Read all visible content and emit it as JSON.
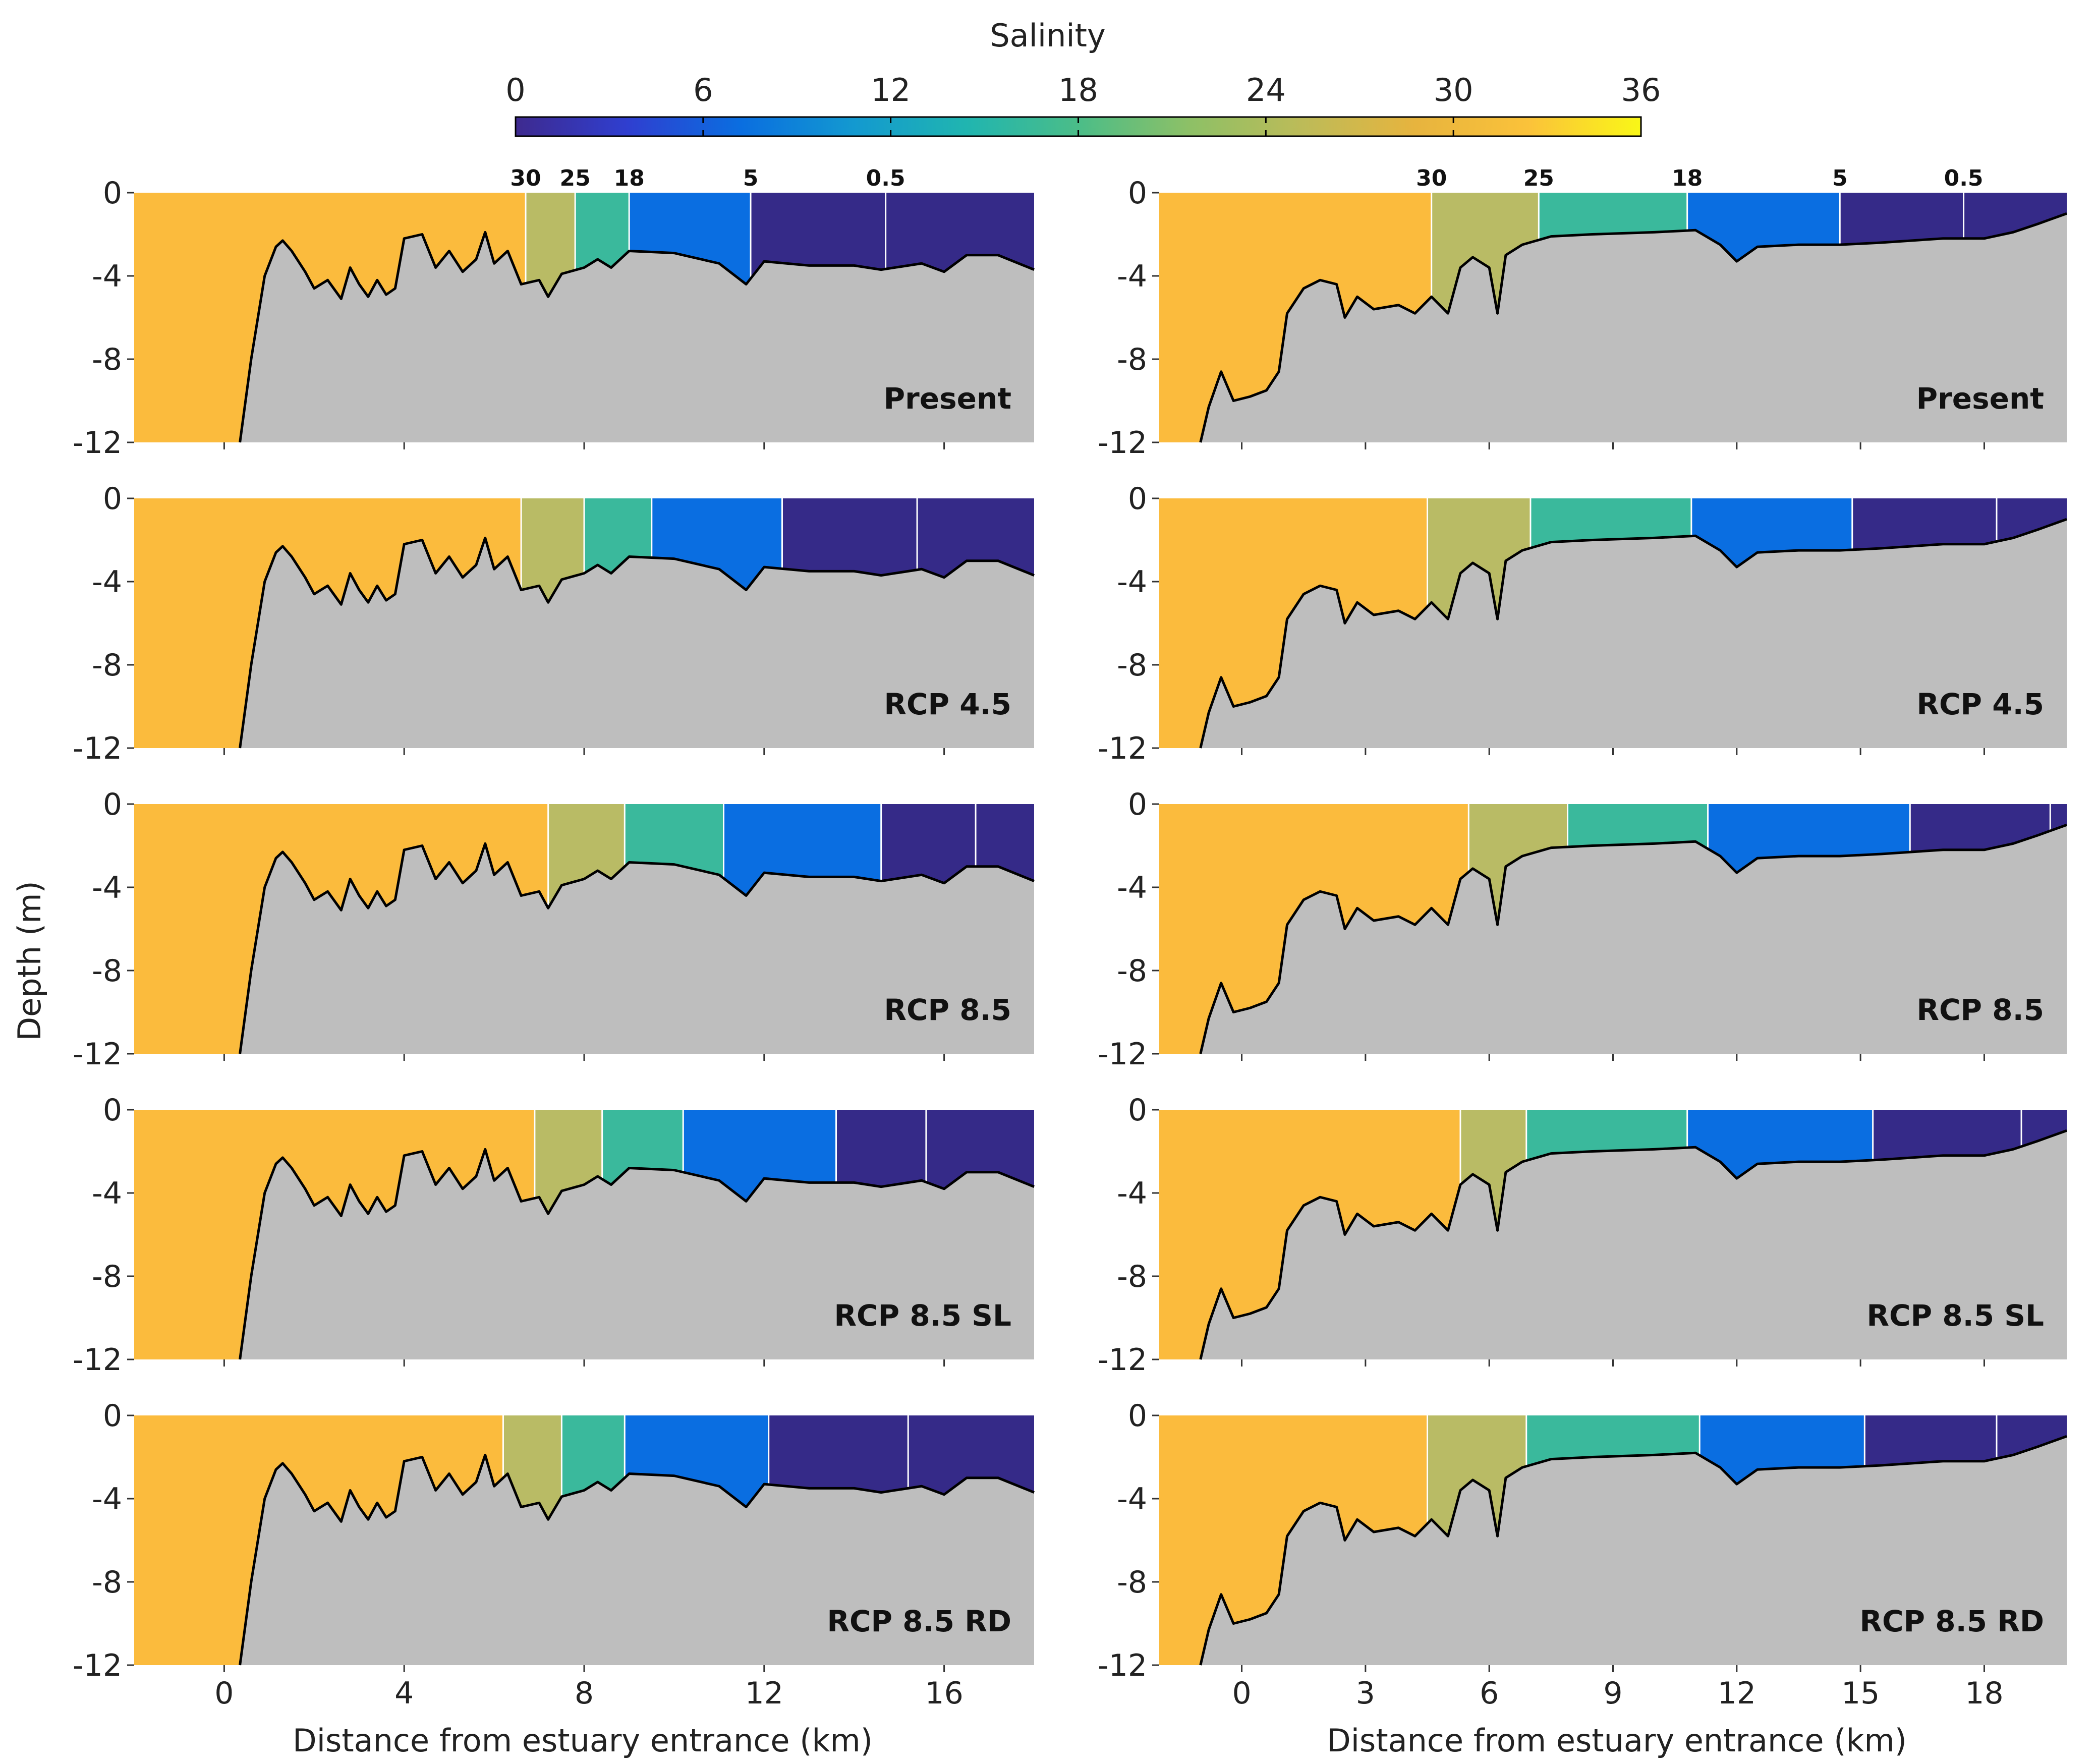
{
  "chart_data": {
    "type": "area",
    "title": "Salinity",
    "colorbar": {
      "label": "Salinity",
      "ticks": [
        "0",
        "6",
        "12",
        "18",
        "24",
        "30",
        "36"
      ],
      "range": [
        0,
        36
      ],
      "colormap": [
        "#3e2a8f",
        "#2f3fd0",
        "#0a6ee0",
        "#1399d0",
        "#20b5b0",
        "#4bbd88",
        "#8ec066",
        "#bdbb58",
        "#e7b43e",
        "#fbc23a",
        "#f9f717"
      ]
    },
    "band_colors": {
      "above30": "#fbbb3d",
      "25to30": "#b9bb65",
      "18to25": "#3ab99c",
      "5to18": "#0a6ee1",
      "0.5to5": "#352a88",
      "below0.5": "#352a88",
      "bed": "#bebebe",
      "isohaline": "#ffffff",
      "bottom_line": "#000000"
    },
    "ylabel": "Depth (m)",
    "xlabel": "Distance from estuary entrance (km)",
    "ylim": [
      -12,
      0
    ],
    "y_ticks": [
      "0",
      "-4",
      "-8",
      "-12"
    ],
    "scenarios": [
      "Present",
      "RCP 4.5",
      "RCP 8.5",
      "RCP 8.5 SL",
      "RCP 8.5 RD"
    ],
    "left_column": {
      "xlim": [
        -2,
        18
      ],
      "x_ticks": [
        "0",
        "4",
        "8",
        "12",
        "16"
      ],
      "x_tick_values": [
        0,
        4,
        8,
        12,
        16
      ],
      "isohaline_labels": [
        "30",
        "25",
        "18",
        "5",
        "0.5"
      ],
      "bottom_profile": [
        [
          0.35,
          -12
        ],
        [
          0.6,
          -8
        ],
        [
          0.9,
          -4
        ],
        [
          1.15,
          -2.6
        ],
        [
          1.3,
          -2.3
        ],
        [
          1.5,
          -2.8
        ],
        [
          1.8,
          -3.8
        ],
        [
          2.0,
          -4.6
        ],
        [
          2.3,
          -4.2
        ],
        [
          2.6,
          -5.1
        ],
        [
          2.8,
          -3.6
        ],
        [
          3.0,
          -4.4
        ],
        [
          3.2,
          -5.0
        ],
        [
          3.4,
          -4.2
        ],
        [
          3.6,
          -4.9
        ],
        [
          3.8,
          -4.6
        ],
        [
          4.0,
          -2.2
        ],
        [
          4.4,
          -2.0
        ],
        [
          4.7,
          -3.6
        ],
        [
          5.0,
          -2.8
        ],
        [
          5.3,
          -3.8
        ],
        [
          5.6,
          -3.2
        ],
        [
          5.8,
          -1.9
        ],
        [
          6.0,
          -3.4
        ],
        [
          6.3,
          -2.8
        ],
        [
          6.6,
          -4.4
        ],
        [
          7.0,
          -4.2
        ],
        [
          7.2,
          -5.0
        ],
        [
          7.5,
          -3.9
        ],
        [
          8.0,
          -3.6
        ],
        [
          8.3,
          -3.2
        ],
        [
          8.6,
          -3.6
        ],
        [
          9.0,
          -2.8
        ],
        [
          10.0,
          -2.9
        ],
        [
          11.0,
          -3.4
        ],
        [
          11.6,
          -4.4
        ],
        [
          12.0,
          -3.3
        ],
        [
          13.0,
          -3.5
        ],
        [
          14.0,
          -3.5
        ],
        [
          14.6,
          -3.7
        ],
        [
          15.5,
          -3.4
        ],
        [
          16.0,
          -3.8
        ],
        [
          16.5,
          -3.0
        ],
        [
          17.2,
          -3.0
        ],
        [
          18,
          -3.7
        ]
      ],
      "isohalines": {
        "Present": [
          6.7,
          7.8,
          9.0,
          11.7,
          14.7
        ],
        "RCP 4.5": [
          6.6,
          8.0,
          9.5,
          12.4,
          15.4
        ],
        "RCP 8.5": [
          7.2,
          8.9,
          11.1,
          14.6,
          16.7
        ],
        "RCP 8.5 SL": [
          6.9,
          8.4,
          10.2,
          13.6,
          15.6
        ],
        "RCP 8.5 RD": [
          6.2,
          7.5,
          8.9,
          12.1,
          15.2
        ]
      }
    },
    "right_column": {
      "xlim": [
        -2,
        20
      ],
      "x_ticks": [
        "0",
        "3",
        "6",
        "9",
        "12",
        "15",
        "18"
      ],
      "x_tick_values": [
        0,
        3,
        6,
        9,
        12,
        15,
        18
      ],
      "isohaline_labels": [
        "30",
        "25",
        "18",
        "5",
        "0.5"
      ],
      "bottom_profile": [
        [
          -1.0,
          -12
        ],
        [
          -0.8,
          -10.3
        ],
        [
          -0.5,
          -8.6
        ],
        [
          -0.2,
          -10.0
        ],
        [
          0.2,
          -9.8
        ],
        [
          0.6,
          -9.5
        ],
        [
          0.9,
          -8.6
        ],
        [
          1.1,
          -5.8
        ],
        [
          1.5,
          -4.6
        ],
        [
          1.9,
          -4.2
        ],
        [
          2.3,
          -4.4
        ],
        [
          2.5,
          -6.0
        ],
        [
          2.8,
          -5.0
        ],
        [
          3.2,
          -5.6
        ],
        [
          3.8,
          -5.4
        ],
        [
          4.2,
          -5.8
        ],
        [
          4.6,
          -5.0
        ],
        [
          5.0,
          -5.8
        ],
        [
          5.3,
          -3.6
        ],
        [
          5.6,
          -3.1
        ],
        [
          6.0,
          -3.6
        ],
        [
          6.2,
          -5.8
        ],
        [
          6.4,
          -3.0
        ],
        [
          6.8,
          -2.5
        ],
        [
          7.5,
          -2.1
        ],
        [
          8.5,
          -2.0
        ],
        [
          10.0,
          -1.9
        ],
        [
          11.0,
          -1.8
        ],
        [
          11.6,
          -2.5
        ],
        [
          12.0,
          -3.3
        ],
        [
          12.5,
          -2.6
        ],
        [
          13.5,
          -2.5
        ],
        [
          14.5,
          -2.5
        ],
        [
          15.5,
          -2.4
        ],
        [
          17.0,
          -2.2
        ],
        [
          18.0,
          -2.2
        ],
        [
          18.7,
          -1.9
        ],
        [
          19.3,
          -1.5
        ],
        [
          20.0,
          -1.0
        ]
      ],
      "isohalines": {
        "Present": [
          4.6,
          7.2,
          10.8,
          14.5,
          17.5
        ],
        "RCP 4.5": [
          4.5,
          7.0,
          10.9,
          14.8,
          18.3
        ],
        "RCP 8.5": [
          5.5,
          7.9,
          11.3,
          16.2,
          19.6
        ],
        "RCP 8.5 SL": [
          5.3,
          6.9,
          10.8,
          15.3,
          18.9
        ],
        "RCP 8.5 RD": [
          4.5,
          6.9,
          11.1,
          15.1,
          18.3
        ]
      }
    }
  }
}
